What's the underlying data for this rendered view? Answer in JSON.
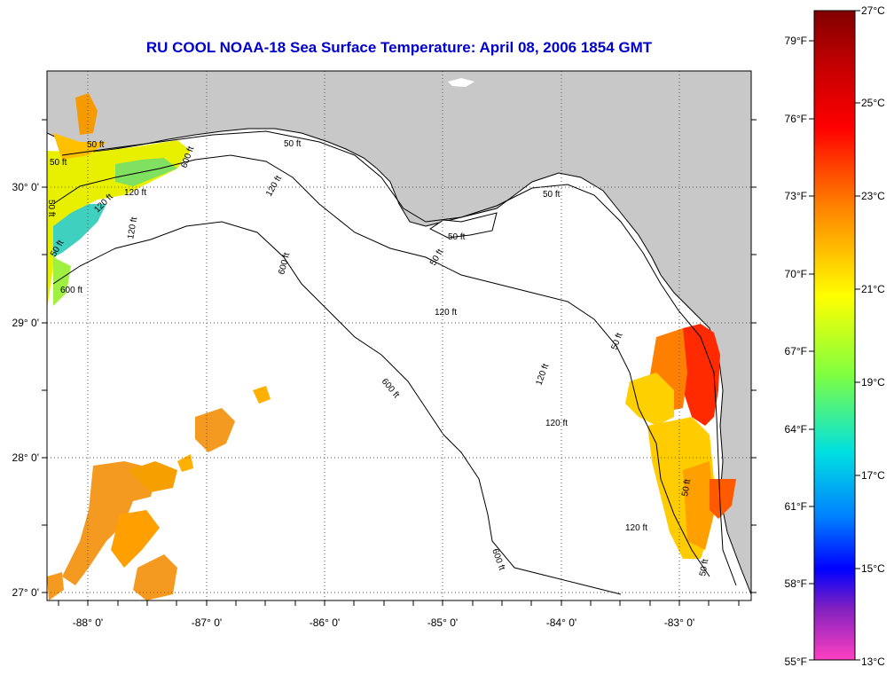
{
  "title": "RU COOL  NOAA-18  Sea Surface Temperature:  April 08, 2006 1854 GMT",
  "map": {
    "land_color": "#c8c8c8",
    "water_color": "#ffffff",
    "grid": "dotted",
    "longitude_labels": [
      "-88° 0'",
      "-87° 0'",
      "-86° 0'",
      "-85° 0'",
      "-84° 0'",
      "-83° 0'"
    ],
    "latitude_labels": [
      "30° 0'",
      "29° 0'",
      "28° 0'",
      "27° 0'"
    ],
    "contour_labels": [
      "50 ft",
      "50 ft",
      "50 ft",
      "120 ft",
      "120 ft",
      "600 ft",
      "50 ft",
      "120 ft",
      "600 ft",
      "50 ft",
      "50 ft",
      "50 ft",
      "120 ft",
      "120 ft",
      "600 ft",
      "50 ft",
      "120 ft",
      "600 ft",
      "50 ft",
      "120 ft",
      "50 ft",
      "50 ft",
      "120 ft",
      "600 ft"
    ]
  },
  "colorbar": {
    "fahrenheit_labels": [
      "79°F",
      "76°F",
      "73°F",
      "70°F",
      "67°F",
      "64°F",
      "61°F",
      "58°F",
      "55°F"
    ],
    "celsius_labels": [
      "27°C",
      "25°C",
      "23°C",
      "21°C",
      "19°C",
      "17°C",
      "15°C",
      "13°C"
    ],
    "colors": [
      "#800000",
      "#ff0000",
      "#ff8000",
      "#ffff00",
      "#80ff40",
      "#00e0e0",
      "#0080ff",
      "#0000ff",
      "#8020c0",
      "#ff40c0"
    ]
  }
}
